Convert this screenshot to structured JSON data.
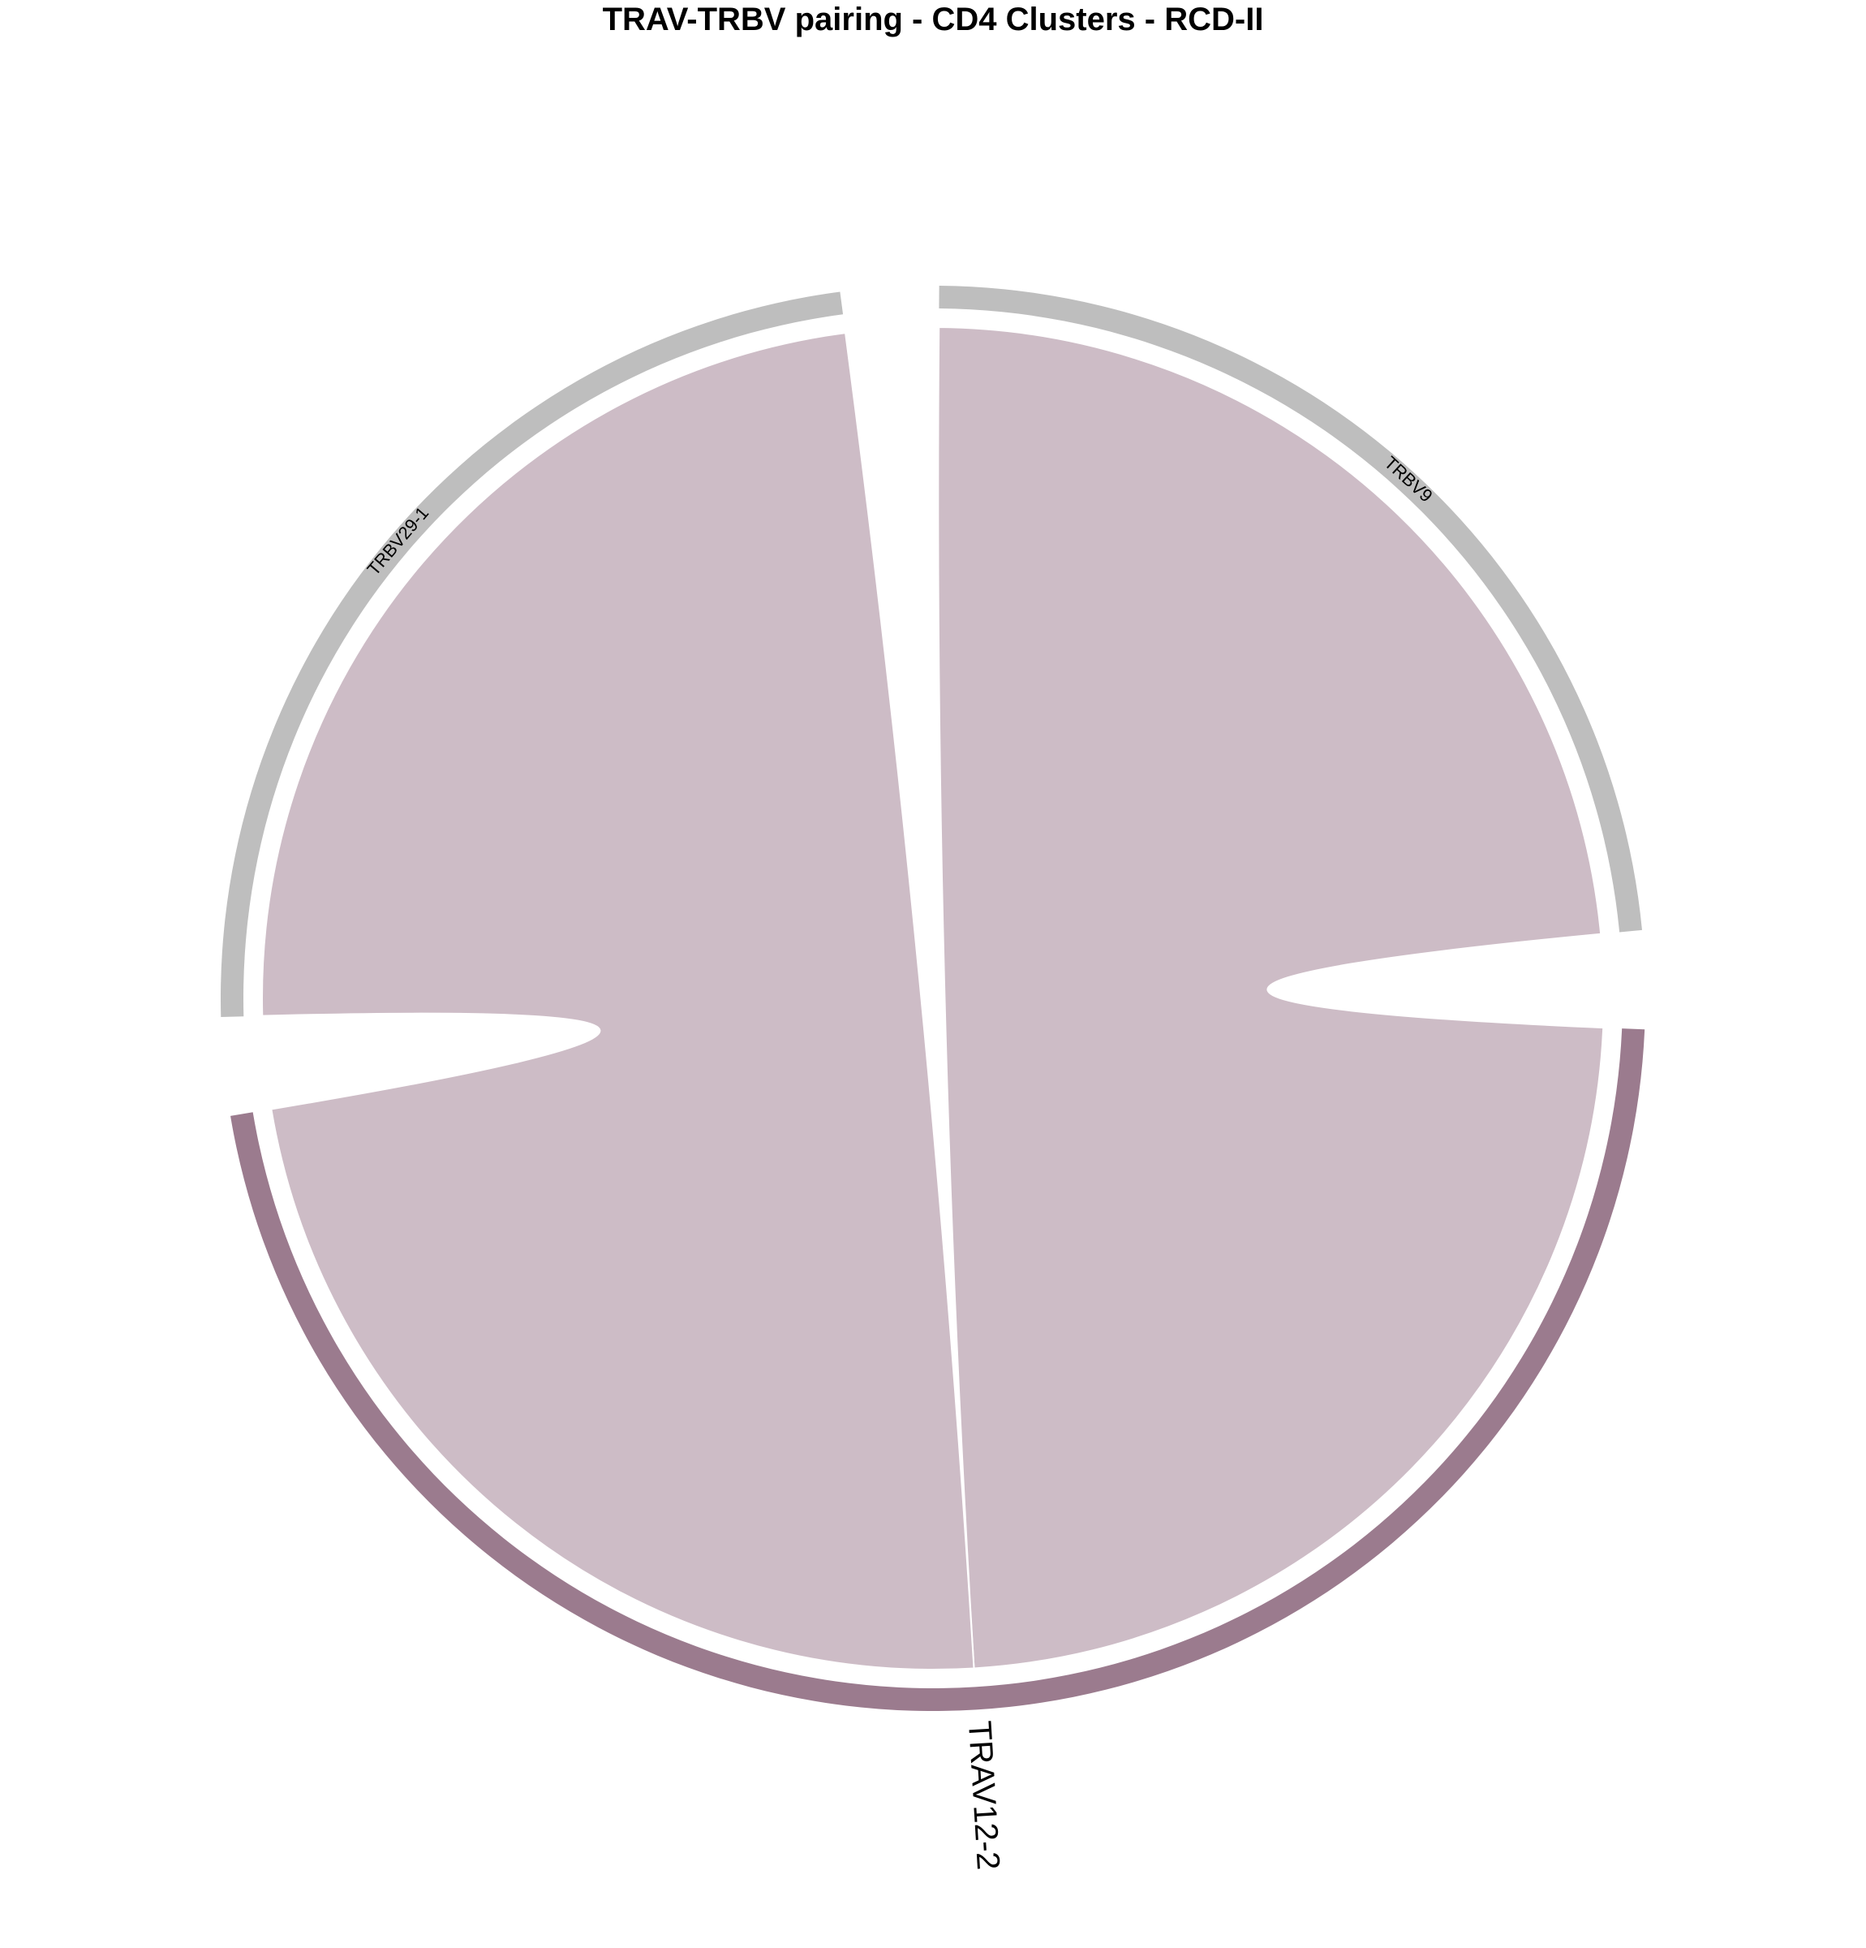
{
  "chart_data": {
    "type": "chord",
    "title": "TRAV-TRBV pairing - CD4 Clusters - RCD-II",
    "sectors": [
      {
        "name": "TRBV9",
        "group": "TRBV",
        "value": 1,
        "color": "#BEBEBE",
        "label_size": "small"
      },
      {
        "name": "TRAV12-2",
        "group": "TRAV",
        "value": 2,
        "color": "#9B7B8E",
        "label_size": "large"
      },
      {
        "name": "TRBV29-1",
        "group": "TRBV",
        "value": 1,
        "color": "#BEBEBE",
        "label_size": "small"
      }
    ],
    "links": [
      {
        "from": "TRAV12-2",
        "to": "TRBV9",
        "value": 1,
        "color": "#CDBCC6"
      },
      {
        "from": "TRAV12-2",
        "to": "TRBV29-1",
        "value": 1,
        "color": "#CDBCC6"
      }
    ]
  }
}
